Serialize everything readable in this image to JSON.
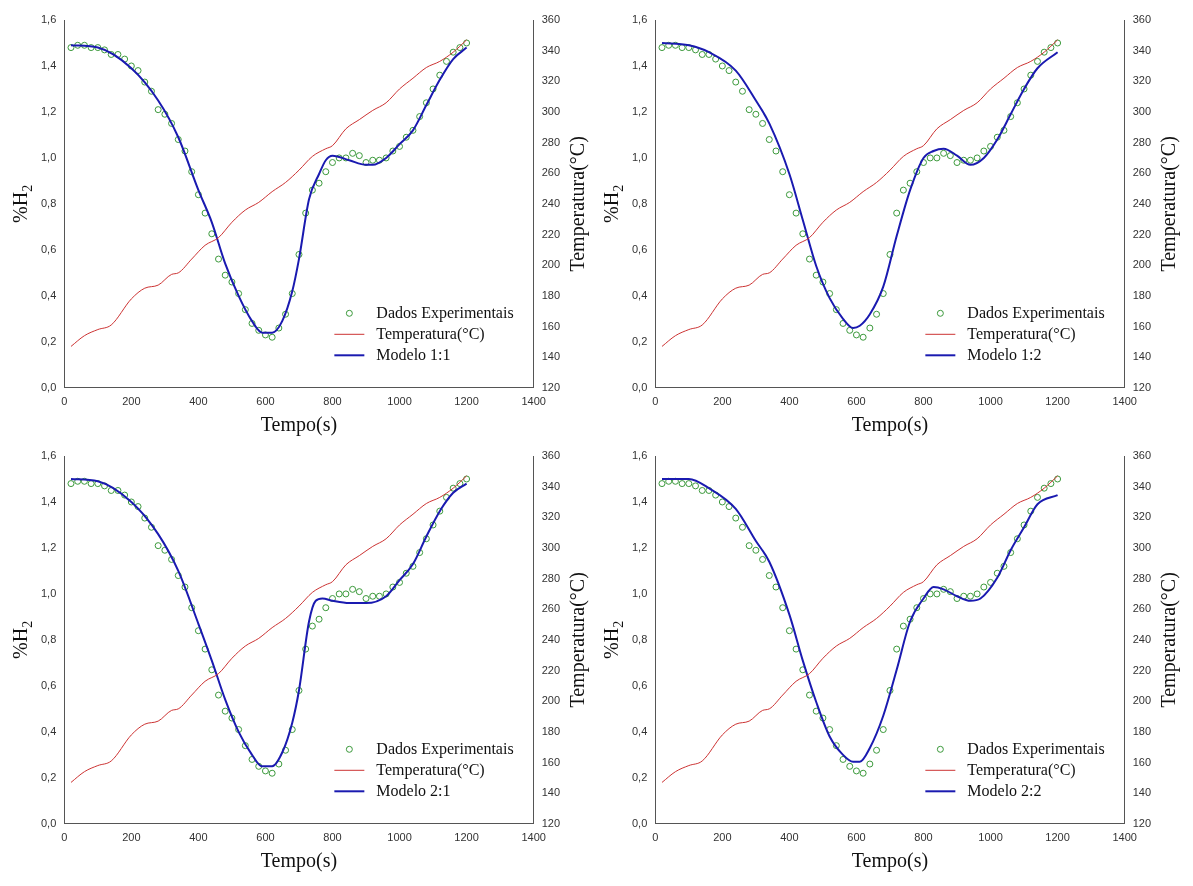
{
  "chart_data": [
    {
      "type": "line",
      "xlabel": "Tempo(s)",
      "ylabel": "%H$_{2}$",
      "y2label": "Temperatura(°C)",
      "legend": "bottom right",
      "grid": false,
      "xlim": [
        0,
        1400
      ],
      "xticks": [
        0,
        200,
        400,
        600,
        800,
        1000,
        1200,
        1400
      ],
      "ylim": [
        0,
        1.6
      ],
      "yticks": [
        {
          "value": 0,
          "label": "0,0"
        },
        {
          "value": 0.2,
          "label": "0,2"
        },
        {
          "value": 0.4,
          "label": "0,4"
        },
        {
          "value": 0.6,
          "label": "0,6"
        },
        {
          "value": 0.8,
          "label": "0,8"
        },
        {
          "value": 1.0,
          "label": "1,0"
        },
        {
          "value": 1.2,
          "label": "1,2"
        },
        {
          "value": 1.4,
          "label": "1,4"
        },
        {
          "value": 1.6,
          "label": "1,6"
        }
      ],
      "y2lim": [
        120,
        360
      ],
      "y2ticks": [
        120,
        140,
        160,
        180,
        200,
        220,
        240,
        260,
        280,
        300,
        320,
        340,
        360
      ],
      "series": [
        {
          "name": "Dados Experimentais",
          "type": "scatter",
          "marker": "circle",
          "color": "#3c9a3c",
          "x": [
            20,
            40,
            60,
            80,
            100,
            120,
            140,
            160,
            180,
            200,
            220,
            240,
            260,
            280,
            300,
            320,
            340,
            360,
            380,
            400,
            420,
            440,
            460,
            480,
            500,
            520,
            540,
            560,
            580,
            600,
            620,
            640,
            660,
            680,
            700,
            720,
            740,
            760,
            780,
            800,
            820,
            840,
            860,
            880,
            900,
            920,
            940,
            960,
            980,
            1000,
            1020,
            1040,
            1060,
            1080,
            1100,
            1120,
            1140,
            1160,
            1180,
            1200
          ],
          "values": [
            1.48,
            1.49,
            1.49,
            1.48,
            1.48,
            1.47,
            1.45,
            1.45,
            1.43,
            1.4,
            1.38,
            1.33,
            1.29,
            1.21,
            1.19,
            1.15,
            1.08,
            1.03,
            0.94,
            0.84,
            0.76,
            0.67,
            0.56,
            0.49,
            0.46,
            0.41,
            0.34,
            0.28,
            0.25,
            0.23,
            0.22,
            0.26,
            0.32,
            0.41,
            0.58,
            0.76,
            0.86,
            0.89,
            0.94,
            0.98,
            1.0,
            1.0,
            1.02,
            1.01,
            0.98,
            0.99,
            0.99,
            1.0,
            1.03,
            1.05,
            1.09,
            1.12,
            1.18,
            1.24,
            1.3,
            1.36,
            1.42,
            1.46,
            1.48,
            1.5
          ]
        },
        {
          "name": "Temperatura(°C)",
          "type": "line",
          "axis": "y2",
          "color": "#cc3333",
          "x": [
            20,
            60,
            100,
            140,
            200,
            240,
            280,
            320,
            340,
            380,
            420,
            460,
            500,
            540,
            580,
            620,
            660,
            700,
            740,
            780,
            800,
            840,
            880,
            920,
            960,
            1000,
            1040,
            1080,
            1120,
            1160,
            1200
          ],
          "values": [
            147,
            154,
            158,
            161,
            178,
            185,
            187,
            194,
            195,
            204,
            213,
            218,
            228,
            236,
            241,
            248,
            254,
            262,
            271,
            276,
            278,
            289,
            295,
            301,
            306,
            315,
            322,
            329,
            333,
            339,
            347
          ]
        },
        {
          "name": "Modelo 1:1",
          "type": "line",
          "color": "#1a1ab0",
          "x": [
            20,
            100,
            200,
            280,
            340,
            400,
            440,
            480,
            520,
            560,
            590,
            620,
            650,
            680,
            700,
            730,
            760,
            780,
            800,
            850,
            900,
            920,
            960,
            1000,
            1040,
            1080,
            1120,
            1160,
            1200
          ],
          "values": [
            1.49,
            1.48,
            1.39,
            1.25,
            1.09,
            0.86,
            0.72,
            0.54,
            0.4,
            0.29,
            0.24,
            0.24,
            0.29,
            0.42,
            0.56,
            0.82,
            0.93,
            0.99,
            1.01,
            0.99,
            0.97,
            0.97,
            1.0,
            1.06,
            1.12,
            1.23,
            1.34,
            1.43,
            1.48
          ]
        }
      ]
    },
    {
      "type": "line",
      "xlabel": "Tempo(s)",
      "ylabel": "%H$_{2}$",
      "y2label": "Temperatura(°C)",
      "legend": "bottom right",
      "grid": false,
      "xlim": [
        0,
        1400
      ],
      "xticks": [
        0,
        200,
        400,
        600,
        800,
        1000,
        1200,
        1400
      ],
      "ylim": [
        0,
        1.6
      ],
      "yticks": [
        {
          "value": 0,
          "label": "0,0"
        },
        {
          "value": 0.2,
          "label": "0,2"
        },
        {
          "value": 0.4,
          "label": "0,4"
        },
        {
          "value": 0.6,
          "label": "0,6"
        },
        {
          "value": 0.8,
          "label": "0,8"
        },
        {
          "value": 1.0,
          "label": "1,0"
        },
        {
          "value": 1.2,
          "label": "1,2"
        },
        {
          "value": 1.4,
          "label": "1,4"
        },
        {
          "value": 1.6,
          "label": "1,6"
        }
      ],
      "y2lim": [
        120,
        360
      ],
      "y2ticks": [
        120,
        140,
        160,
        180,
        200,
        220,
        240,
        260,
        280,
        300,
        320,
        340,
        360
      ],
      "series": [
        {
          "name": "Dados Experimentais",
          "type": "scatter",
          "marker": "circle",
          "color": "#3c9a3c",
          "x": [
            20,
            40,
            60,
            80,
            100,
            120,
            140,
            160,
            180,
            200,
            220,
            240,
            260,
            280,
            300,
            320,
            340,
            360,
            380,
            400,
            420,
            440,
            460,
            480,
            500,
            520,
            540,
            560,
            580,
            600,
            620,
            640,
            660,
            680,
            700,
            720,
            740,
            760,
            780,
            800,
            820,
            840,
            860,
            880,
            900,
            920,
            940,
            960,
            980,
            1000,
            1020,
            1040,
            1060,
            1080,
            1100,
            1120,
            1140,
            1160,
            1180,
            1200
          ],
          "values": [
            1.48,
            1.49,
            1.49,
            1.48,
            1.48,
            1.47,
            1.45,
            1.45,
            1.43,
            1.4,
            1.38,
            1.33,
            1.29,
            1.21,
            1.19,
            1.15,
            1.08,
            1.03,
            0.94,
            0.84,
            0.76,
            0.67,
            0.56,
            0.49,
            0.46,
            0.41,
            0.34,
            0.28,
            0.25,
            0.23,
            0.22,
            0.26,
            0.32,
            0.41,
            0.58,
            0.76,
            0.86,
            0.89,
            0.94,
            0.98,
            1.0,
            1.0,
            1.02,
            1.01,
            0.98,
            0.99,
            0.99,
            1.0,
            1.03,
            1.05,
            1.09,
            1.12,
            1.18,
            1.24,
            1.3,
            1.36,
            1.42,
            1.46,
            1.48,
            1.5
          ]
        },
        {
          "name": "Temperatura(°C)",
          "type": "line",
          "axis": "y2",
          "color": "#cc3333",
          "x": [
            20,
            60,
            100,
            140,
            200,
            240,
            280,
            320,
            340,
            380,
            420,
            460,
            500,
            540,
            580,
            620,
            660,
            700,
            740,
            780,
            800,
            840,
            880,
            920,
            960,
            1000,
            1040,
            1080,
            1120,
            1160,
            1200
          ],
          "values": [
            147,
            154,
            158,
            161,
            178,
            185,
            187,
            194,
            195,
            204,
            213,
            218,
            228,
            236,
            241,
            248,
            254,
            262,
            271,
            276,
            278,
            289,
            295,
            301,
            306,
            315,
            322,
            329,
            333,
            339,
            347
          ]
        },
        {
          "name": "Modelo 1:2",
          "type": "line",
          "color": "#1a1ab0",
          "x": [
            20,
            100,
            160,
            240,
            300,
            340,
            400,
            440,
            480,
            520,
            560,
            590,
            610,
            640,
            680,
            720,
            760,
            800,
            830,
            860,
            900,
            940,
            980,
            1020,
            1060,
            1100,
            1140,
            1200
          ],
          "values": [
            1.5,
            1.49,
            1.46,
            1.38,
            1.25,
            1.15,
            0.93,
            0.73,
            0.53,
            0.39,
            0.3,
            0.26,
            0.27,
            0.32,
            0.44,
            0.66,
            0.86,
            1.0,
            1.03,
            1.04,
            1.01,
            0.97,
            1.0,
            1.08,
            1.19,
            1.3,
            1.39,
            1.46
          ]
        }
      ]
    },
    {
      "type": "line",
      "xlabel": "Tempo(s)",
      "ylabel": "%H$_{2}$",
      "y2label": "Temperatura(°C)",
      "legend": "bottom right",
      "grid": false,
      "xlim": [
        0,
        1400
      ],
      "xticks": [
        0,
        200,
        400,
        600,
        800,
        1000,
        1200,
        1400
      ],
      "ylim": [
        0,
        1.6
      ],
      "yticks": [
        {
          "value": 0,
          "label": "0,0"
        },
        {
          "value": 0.2,
          "label": "0,2"
        },
        {
          "value": 0.4,
          "label": "0,4"
        },
        {
          "value": 0.6,
          "label": "0,6"
        },
        {
          "value": 0.8,
          "label": "0,8"
        },
        {
          "value": 1.0,
          "label": "1,0"
        },
        {
          "value": 1.2,
          "label": "1,2"
        },
        {
          "value": 1.4,
          "label": "1,4"
        },
        {
          "value": 1.6,
          "label": "1,6"
        }
      ],
      "y2lim": [
        120,
        360
      ],
      "y2ticks": [
        120,
        140,
        160,
        180,
        200,
        220,
        240,
        260,
        280,
        300,
        320,
        340,
        360
      ],
      "series": [
        {
          "name": "Dados Experimentais",
          "type": "scatter",
          "marker": "circle",
          "color": "#3c9a3c",
          "x": [
            20,
            40,
            60,
            80,
            100,
            120,
            140,
            160,
            180,
            200,
            220,
            240,
            260,
            280,
            300,
            320,
            340,
            360,
            380,
            400,
            420,
            440,
            460,
            480,
            500,
            520,
            540,
            560,
            580,
            600,
            620,
            640,
            660,
            680,
            700,
            720,
            740,
            760,
            780,
            800,
            820,
            840,
            860,
            880,
            900,
            920,
            940,
            960,
            980,
            1000,
            1020,
            1040,
            1060,
            1080,
            1100,
            1120,
            1140,
            1160,
            1180,
            1200
          ],
          "values": [
            1.48,
            1.49,
            1.49,
            1.48,
            1.48,
            1.47,
            1.45,
            1.45,
            1.43,
            1.4,
            1.38,
            1.33,
            1.29,
            1.21,
            1.19,
            1.15,
            1.08,
            1.03,
            0.94,
            0.84,
            0.76,
            0.67,
            0.56,
            0.49,
            0.46,
            0.41,
            0.34,
            0.28,
            0.25,
            0.23,
            0.22,
            0.26,
            0.32,
            0.41,
            0.58,
            0.76,
            0.86,
            0.89,
            0.94,
            0.98,
            1.0,
            1.0,
            1.02,
            1.01,
            0.98,
            0.99,
            0.99,
            1.0,
            1.03,
            1.05,
            1.09,
            1.12,
            1.18,
            1.24,
            1.3,
            1.36,
            1.42,
            1.46,
            1.48,
            1.5
          ]
        },
        {
          "name": "Temperatura(°C)",
          "type": "line",
          "axis": "y2",
          "color": "#cc3333",
          "x": [
            20,
            60,
            100,
            140,
            200,
            240,
            280,
            320,
            340,
            380,
            420,
            460,
            500,
            540,
            580,
            620,
            660,
            700,
            740,
            780,
            800,
            840,
            880,
            920,
            960,
            1000,
            1040,
            1080,
            1120,
            1160,
            1200
          ],
          "values": [
            147,
            154,
            158,
            161,
            178,
            185,
            187,
            194,
            195,
            204,
            213,
            218,
            228,
            236,
            241,
            248,
            254,
            262,
            271,
            276,
            278,
            289,
            295,
            301,
            306,
            315,
            322,
            329,
            333,
            339,
            347
          ]
        },
        {
          "name": "Modelo 2:1",
          "type": "line",
          "color": "#1a1ab0",
          "x": [
            20,
            100,
            200,
            280,
            340,
            400,
            440,
            480,
            520,
            560,
            590,
            620,
            650,
            680,
            700,
            730,
            750,
            770,
            800,
            850,
            900,
            960,
            1000,
            1040,
            1080,
            1120,
            1160,
            1200
          ],
          "values": [
            1.5,
            1.49,
            1.4,
            1.26,
            1.1,
            0.87,
            0.71,
            0.54,
            0.4,
            0.3,
            0.25,
            0.25,
            0.31,
            0.44,
            0.58,
            0.88,
            0.97,
            0.98,
            0.97,
            0.96,
            0.96,
            0.99,
            1.06,
            1.13,
            1.25,
            1.36,
            1.44,
            1.48
          ]
        }
      ]
    },
    {
      "type": "line",
      "xlabel": "Tempo(s)",
      "ylabel": "%H$_{2}$",
      "y2label": "Temperatura(°C)",
      "legend": "bottom right",
      "grid": false,
      "xlim": [
        0,
        1400
      ],
      "xticks": [
        0,
        200,
        400,
        600,
        800,
        1000,
        1200,
        1400
      ],
      "ylim": [
        0,
        1.6
      ],
      "yticks": [
        {
          "value": 0,
          "label": "0,0"
        },
        {
          "value": 0.2,
          "label": "0,2"
        },
        {
          "value": 0.4,
          "label": "0,4"
        },
        {
          "value": 0.6,
          "label": "0,6"
        },
        {
          "value": 0.8,
          "label": "0,8"
        },
        {
          "value": 1.0,
          "label": "1,0"
        },
        {
          "value": 1.2,
          "label": "1,2"
        },
        {
          "value": 1.4,
          "label": "1,4"
        },
        {
          "value": 1.6,
          "label": "1,6"
        }
      ],
      "y2lim": [
        120,
        360
      ],
      "y2ticks": [
        120,
        140,
        160,
        180,
        200,
        220,
        240,
        260,
        280,
        300,
        320,
        340,
        360
      ],
      "series": [
        {
          "name": "Dados Experimentais",
          "type": "scatter",
          "marker": "circle",
          "color": "#3c9a3c",
          "x": [
            20,
            40,
            60,
            80,
            100,
            120,
            140,
            160,
            180,
            200,
            220,
            240,
            260,
            280,
            300,
            320,
            340,
            360,
            380,
            400,
            420,
            440,
            460,
            480,
            500,
            520,
            540,
            560,
            580,
            600,
            620,
            640,
            660,
            680,
            700,
            720,
            740,
            760,
            780,
            800,
            820,
            840,
            860,
            880,
            900,
            920,
            940,
            960,
            980,
            1000,
            1020,
            1040,
            1060,
            1080,
            1100,
            1120,
            1140,
            1160,
            1180,
            1200
          ],
          "values": [
            1.48,
            1.49,
            1.49,
            1.48,
            1.48,
            1.47,
            1.45,
            1.45,
            1.43,
            1.4,
            1.38,
            1.33,
            1.29,
            1.21,
            1.19,
            1.15,
            1.08,
            1.03,
            0.94,
            0.84,
            0.76,
            0.67,
            0.56,
            0.49,
            0.46,
            0.41,
            0.34,
            0.28,
            0.25,
            0.23,
            0.22,
            0.26,
            0.32,
            0.41,
            0.58,
            0.76,
            0.86,
            0.89,
            0.94,
            0.98,
            1.0,
            1.0,
            1.02,
            1.01,
            0.98,
            0.99,
            0.99,
            1.0,
            1.03,
            1.05,
            1.09,
            1.12,
            1.18,
            1.24,
            1.3,
            1.36,
            1.42,
            1.46,
            1.48,
            1.5
          ]
        },
        {
          "name": "Temperatura(°C)",
          "type": "line",
          "axis": "y2",
          "color": "#cc3333",
          "x": [
            20,
            60,
            100,
            140,
            200,
            240,
            280,
            320,
            340,
            380,
            420,
            460,
            500,
            540,
            580,
            620,
            660,
            700,
            740,
            780,
            800,
            840,
            880,
            920,
            960,
            1000,
            1040,
            1080,
            1120,
            1160,
            1200
          ],
          "values": [
            147,
            154,
            158,
            161,
            178,
            185,
            187,
            194,
            195,
            204,
            213,
            218,
            228,
            236,
            241,
            248,
            254,
            262,
            271,
            276,
            278,
            289,
            295,
            301,
            306,
            315,
            322,
            329,
            333,
            339,
            347
          ]
        },
        {
          "name": "Modelo 2:2",
          "type": "line",
          "color": "#1a1ab0",
          "x": [
            20,
            100,
            160,
            240,
            300,
            340,
            400,
            440,
            480,
            520,
            560,
            590,
            610,
            640,
            680,
            720,
            760,
            800,
            830,
            860,
            900,
            940,
            970,
            1020,
            1060,
            1100,
            1140,
            1200
          ],
          "values": [
            1.5,
            1.5,
            1.46,
            1.37,
            1.23,
            1.14,
            0.91,
            0.71,
            0.53,
            0.38,
            0.3,
            0.27,
            0.27,
            0.33,
            0.47,
            0.67,
            0.88,
            0.98,
            1.03,
            1.02,
            0.99,
            0.97,
            0.98,
            1.07,
            1.19,
            1.29,
            1.39,
            1.43
          ]
        }
      ]
    }
  ]
}
